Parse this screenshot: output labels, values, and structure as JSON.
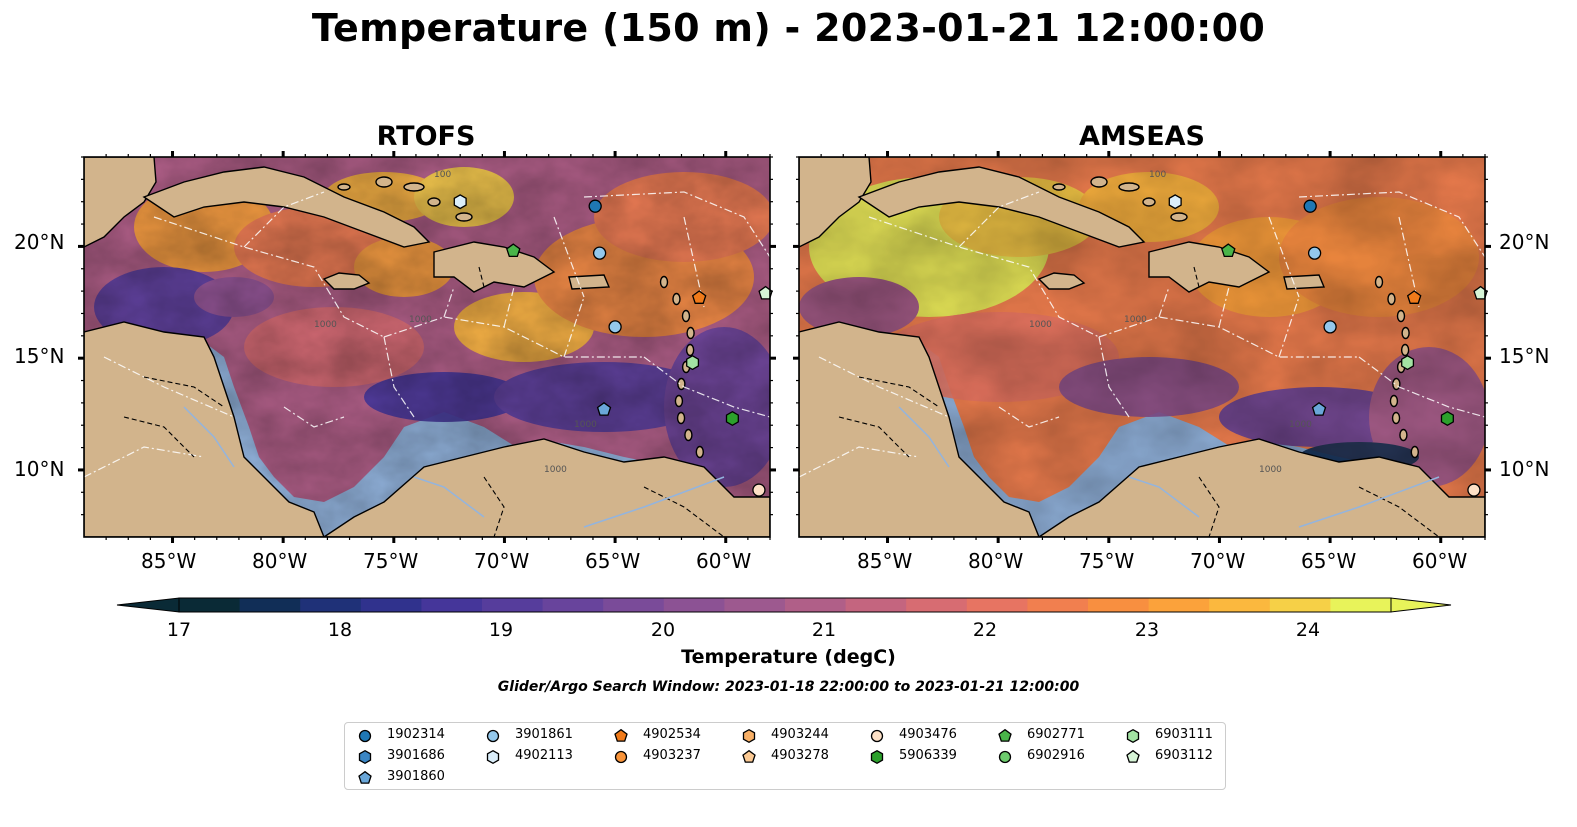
{
  "title": "Temperature (150 m) - 2023-01-21 12:00:00",
  "panels": [
    {
      "title": "RTOFS"
    },
    {
      "title": "AMSEAS"
    }
  ],
  "lat_ticks": [
    "20°N",
    "15°N",
    "10°N"
  ],
  "lon_ticks": [
    "85°W",
    "80°W",
    "75°W",
    "70°W",
    "65°W",
    "60°W"
  ],
  "colorbar": {
    "label": "Temperature (degC)",
    "ticks": [
      "17",
      "18",
      "19",
      "20",
      "21",
      "22",
      "23",
      "24"
    ],
    "colors": [
      "#0a2a36",
      "#112e57",
      "#1f3178",
      "#30328d",
      "#45369a",
      "#563d9c",
      "#68449c",
      "#7a4b99",
      "#8c5294",
      "#9d598f",
      "#b05f88",
      "#c4657f",
      "#d76c72",
      "#e77462",
      "#f17f4f",
      "#f88f40",
      "#fba23b",
      "#fbb83e",
      "#f6d047",
      "#e8f35a"
    ]
  },
  "search_window": "Glider/Argo Search Window: 2023-01-18 22:00:00 to 2023-01-21 12:00:00",
  "legend": [
    {
      "id": "1902314",
      "shape": "circle",
      "color": "#1f77b4"
    },
    {
      "id": "3901686",
      "shape": "hexagon",
      "color": "#3b86c4"
    },
    {
      "id": "3901860",
      "shape": "pentagon",
      "color": "#6aa7d9"
    },
    {
      "id": "3901861",
      "shape": "circle",
      "color": "#94c8ec"
    },
    {
      "id": "4902113",
      "shape": "hexagon",
      "color": "#dbeefa"
    },
    {
      "id": "4902534",
      "shape": "pentagon",
      "color": "#f07a1a"
    },
    {
      "id": "4903237",
      "shape": "circle",
      "color": "#f9943a"
    },
    {
      "id": "4903244",
      "shape": "hexagon",
      "color": "#f8b067"
    },
    {
      "id": "4903278",
      "shape": "pentagon",
      "color": "#fcca94"
    },
    {
      "id": "4903476",
      "shape": "circle",
      "color": "#fde0c6"
    },
    {
      "id": "5906339",
      "shape": "hexagon",
      "color": "#2ca02c"
    },
    {
      "id": "6902771",
      "shape": "pentagon",
      "color": "#49b449"
    },
    {
      "id": "6902916",
      "shape": "circle",
      "color": "#6dcb6d"
    },
    {
      "id": "6903111",
      "shape": "hexagon",
      "color": "#a3e2a3"
    },
    {
      "id": "6903112",
      "shape": "pentagon",
      "color": "#d7f5d7"
    }
  ],
  "observations": [
    {
      "id": "1902314",
      "lon": -65.9,
      "lat": 21.8
    },
    {
      "id": "3901861",
      "lon": -65.7,
      "lat": 19.7
    },
    {
      "id": "6902771",
      "lon": -69.6,
      "lat": 19.8
    },
    {
      "id": "4902113",
      "lon": -72.0,
      "lat": 22.0
    },
    {
      "id": "4902534",
      "lon": -61.2,
      "lat": 17.7
    },
    {
      "id": "3901861",
      "lon": -65.0,
      "lat": 16.4
    },
    {
      "id": "6903112",
      "lon": -58.2,
      "lat": 17.9
    },
    {
      "id": "6903111",
      "lon": -61.5,
      "lat": 14.8
    },
    {
      "id": "3901860",
      "lon": -65.5,
      "lat": 12.7
    },
    {
      "id": "5906339",
      "lon": -59.7,
      "lat": 12.3
    },
    {
      "id": "4903476",
      "lon": -58.5,
      "lat": 9.1
    }
  ],
  "contour_labels": [
    "1000",
    "100"
  ]
}
